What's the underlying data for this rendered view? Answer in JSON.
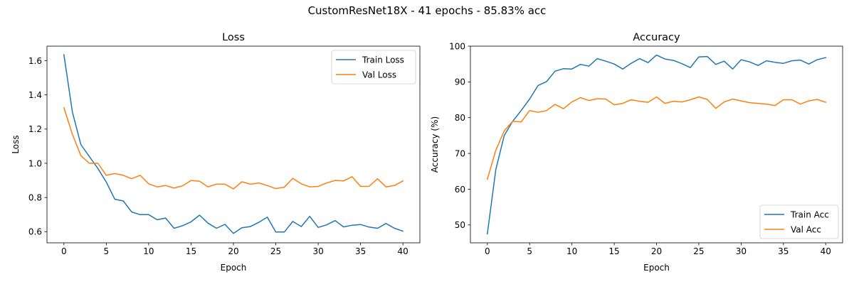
{
  "suptitle": "CustomResNet18X - 41 epochs - 85.83% acc",
  "colors": {
    "train": "#1f77b4",
    "val": "#ff7f0e",
    "axis": "#000000",
    "legend_border": "#cccccc"
  },
  "chart_data": [
    {
      "type": "line",
      "title": "Loss",
      "xlabel": "Epoch",
      "ylabel": "Loss",
      "xlim": [
        -2,
        42
      ],
      "ylim": [
        0.535,
        1.685
      ],
      "xticks": [
        0,
        5,
        10,
        15,
        20,
        25,
        30,
        35,
        40
      ],
      "yticks": [
        0.6,
        0.8,
        1.0,
        1.2,
        1.4,
        1.6
      ],
      "ytick_decimals": 1,
      "legend": "upper right",
      "grid": false,
      "series": [
        {
          "name": "Train Loss",
          "color_key": "train",
          "x": [
            0,
            1,
            2,
            3,
            4,
            5,
            6,
            7,
            8,
            9,
            10,
            11,
            12,
            13,
            14,
            15,
            16,
            17,
            18,
            19,
            20,
            21,
            22,
            23,
            24,
            25,
            26,
            27,
            28,
            29,
            30,
            31,
            32,
            33,
            34,
            35,
            36,
            37,
            38,
            39,
            40
          ],
          "values": [
            1.635,
            1.3,
            1.11,
            1.04,
            0.97,
            0.89,
            0.79,
            0.78,
            0.715,
            0.7,
            0.7,
            0.67,
            0.68,
            0.62,
            0.635,
            0.658,
            0.697,
            0.65,
            0.62,
            0.643,
            0.59,
            0.623,
            0.63,
            0.655,
            0.685,
            0.598,
            0.598,
            0.66,
            0.63,
            0.69,
            0.625,
            0.64,
            0.665,
            0.628,
            0.638,
            0.642,
            0.627,
            0.62,
            0.648,
            0.62,
            0.603
          ]
        },
        {
          "name": "Val Loss",
          "color_key": "val",
          "x": [
            0,
            1,
            2,
            3,
            4,
            5,
            6,
            7,
            8,
            9,
            10,
            11,
            12,
            13,
            14,
            15,
            16,
            17,
            18,
            19,
            20,
            21,
            22,
            23,
            24,
            25,
            26,
            27,
            28,
            29,
            30,
            31,
            32,
            33,
            34,
            35,
            36,
            37,
            38,
            39,
            40
          ],
          "values": [
            1.325,
            1.17,
            1.045,
            1.0,
            1.0,
            0.93,
            0.94,
            0.93,
            0.91,
            0.93,
            0.88,
            0.862,
            0.87,
            0.855,
            0.868,
            0.9,
            0.895,
            0.862,
            0.878,
            0.878,
            0.85,
            0.892,
            0.878,
            0.885,
            0.87,
            0.852,
            0.86,
            0.912,
            0.88,
            0.862,
            0.865,
            0.885,
            0.9,
            0.897,
            0.922,
            0.865,
            0.865,
            0.91,
            0.862,
            0.87,
            0.897
          ]
        }
      ]
    },
    {
      "type": "line",
      "title": "Accuracy",
      "xlabel": "Epoch",
      "ylabel": "Accuracy (%)",
      "xlim": [
        -2,
        42
      ],
      "ylim": [
        45.0,
        100.0
      ],
      "xticks": [
        0,
        5,
        10,
        15,
        20,
        25,
        30,
        35,
        40
      ],
      "yticks": [
        50,
        60,
        70,
        80,
        90,
        100
      ],
      "ytick_decimals": 0,
      "legend": "lower right",
      "grid": false,
      "series": [
        {
          "name": "Train Acc",
          "color_key": "train",
          "x": [
            0,
            1,
            2,
            3,
            4,
            5,
            6,
            7,
            8,
            9,
            10,
            11,
            12,
            13,
            14,
            15,
            16,
            17,
            18,
            19,
            20,
            21,
            22,
            23,
            24,
            25,
            26,
            27,
            28,
            29,
            30,
            31,
            32,
            33,
            34,
            35,
            36,
            37,
            38,
            39,
            40
          ],
          "values": [
            47.5,
            65.5,
            75.0,
            79.0,
            82.0,
            85.2,
            89.0,
            90.1,
            93.0,
            93.7,
            93.6,
            94.9,
            94.4,
            96.5,
            95.8,
            95.0,
            93.6,
            95.2,
            96.5,
            95.4,
            97.5,
            96.4,
            96.0,
            95.1,
            94.0,
            97.0,
            97.1,
            94.9,
            95.8,
            93.6,
            96.2,
            95.6,
            94.6,
            95.9,
            95.5,
            95.2,
            95.9,
            96.1,
            95.0,
            96.2,
            96.8
          ]
        },
        {
          "name": "Val Acc",
          "color_key": "val",
          "x": [
            0,
            1,
            2,
            3,
            4,
            5,
            6,
            7,
            8,
            9,
            10,
            11,
            12,
            13,
            14,
            15,
            16,
            17,
            18,
            19,
            20,
            21,
            22,
            23,
            24,
            25,
            26,
            27,
            28,
            29,
            30,
            31,
            32,
            33,
            34,
            35,
            36,
            37,
            38,
            39,
            40
          ],
          "values": [
            62.8,
            70.9,
            76.3,
            79.0,
            78.8,
            82.0,
            81.5,
            82.0,
            83.7,
            82.5,
            84.4,
            85.6,
            84.8,
            85.3,
            85.2,
            83.6,
            84.0,
            85.0,
            84.6,
            84.3,
            85.8,
            84.0,
            84.6,
            84.4,
            85.0,
            85.8,
            85.1,
            82.6,
            84.4,
            85.2,
            84.7,
            84.2,
            84.0,
            83.8,
            83.4,
            85.0,
            85.0,
            83.8,
            84.7,
            85.1,
            84.3
          ]
        }
      ]
    }
  ]
}
